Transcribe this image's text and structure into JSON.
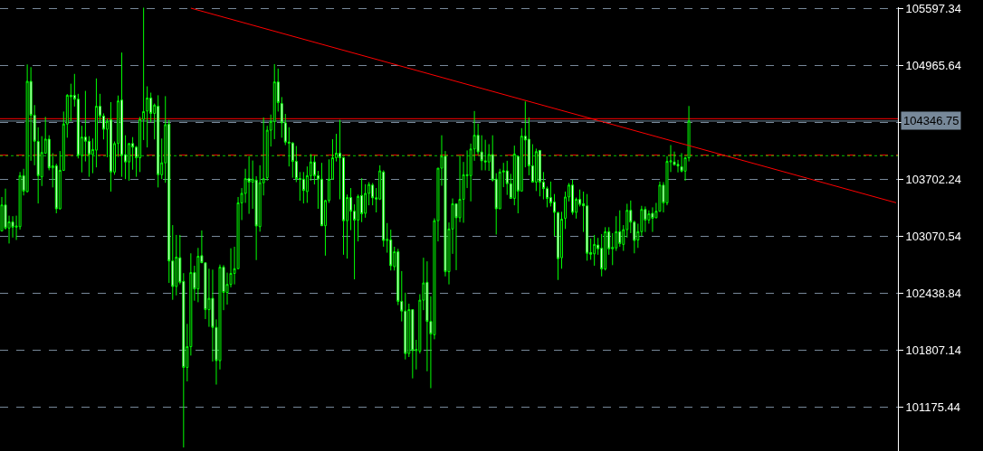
{
  "chart_data": {
    "type": "candlestick",
    "color": "#00ff00",
    "categories": [
      null,
      null,
      null,
      null,
      null,
      null,
      null,
      null,
      null,
      null,
      null,
      null,
      null,
      null,
      null,
      null,
      null,
      null,
      null,
      null,
      null,
      null,
      null,
      null,
      null,
      null,
      null,
      null,
      null,
      null,
      null,
      null,
      null,
      null,
      null,
      null,
      null,
      null,
      null,
      null,
      null,
      null,
      null,
      null,
      null,
      null,
      null,
      null,
      null,
      null,
      null,
      null,
      null,
      null,
      null,
      null,
      null,
      null,
      null,
      null,
      null,
      null,
      null,
      null,
      null,
      null,
      null,
      null,
      null,
      null,
      null,
      null,
      null,
      null,
      null,
      null,
      null,
      null,
      null,
      null,
      null,
      null,
      null,
      null,
      null,
      null,
      null,
      null,
      null,
      null,
      null,
      null,
      null,
      null,
      null,
      null,
      null,
      null,
      null,
      null,
      null,
      null,
      null,
      null,
      null,
      null,
      null,
      null,
      null,
      null,
      null,
      null,
      null,
      null,
      null,
      null,
      null,
      null,
      null,
      null,
      null,
      null,
      null,
      null,
      null,
      null,
      null,
      null,
      null,
      null,
      null,
      null,
      null,
      null,
      null,
      null,
      null,
      null,
      null,
      null,
      null,
      null,
      null,
      null,
      null,
      null,
      null,
      null,
      null,
      null,
      null,
      null,
      null,
      null,
      null,
      null,
      null,
      null,
      null,
      null,
      null,
      null,
      null,
      null,
      null,
      null,
      null,
      null,
      null,
      null,
      null,
      null,
      null,
      null,
      null,
      null,
      null,
      null,
      null,
      null,
      null,
      null,
      null,
      null,
      null,
      null,
      null,
      null,
      null,
      null,
      null,
      null,
      null,
      null,
      null,
      null,
      null,
      null,
      null,
      null,
      null,
      null,
      null,
      null,
      null,
      null,
      null,
      null,
      null,
      null,
      null,
      null,
      null,
      null,
      null,
      null,
      null,
      null,
      null,
      null,
      null,
      null,
      null,
      null,
      null,
      null,
      null,
      null,
      null,
      null,
      null,
      null,
      null,
      null,
      null,
      null,
      null,
      null,
      null,
      null,
      null,
      null,
      null,
      null,
      null,
      null,
      null
    ],
    "ohlc": [
      [
        103126,
        103504,
        103126,
        103416
      ],
      [
        103416,
        103597,
        103142,
        103159
      ],
      [
        103159,
        103297,
        102988,
        103228
      ],
      [
        103228,
        103291,
        103054,
        103169
      ],
      [
        103169,
        103297,
        103027,
        103182
      ],
      [
        103175,
        103781,
        103142,
        103741
      ],
      [
        103741,
        103817,
        103521,
        103570
      ],
      [
        103564,
        104975,
        103554,
        104787
      ],
      [
        104787,
        104945,
        103906,
        104412
      ],
      [
        104412,
        104524,
        103856,
        104123
      ],
      [
        104120,
        104278,
        103432,
        103741
      ],
      [
        103728,
        104179,
        103626,
        103998
      ],
      [
        103991,
        104393,
        103981,
        104146
      ],
      [
        104146,
        104189,
        103800,
        103827
      ],
      [
        103827,
        103991,
        103610,
        103850
      ],
      [
        103850,
        103873,
        103323,
        103373
      ],
      [
        103373,
        104014,
        103366,
        103800
      ],
      [
        103800,
        104452,
        103794,
        104314
      ],
      [
        104314,
        104646,
        104162,
        104633
      ],
      [
        104633,
        104761,
        104343,
        104616
      ],
      [
        104633,
        104870,
        104508,
        104590
      ],
      [
        104590,
        104649,
        103932,
        103965
      ],
      [
        103965,
        104294,
        103777,
        104169
      ],
      [
        104169,
        104682,
        103899,
        104123
      ],
      [
        104123,
        104179,
        103728,
        103975
      ],
      [
        103975,
        104153,
        103768,
        104031
      ],
      [
        104024,
        104820,
        103833,
        104511
      ],
      [
        104511,
        104649,
        104327,
        104403
      ],
      [
        104403,
        104432,
        104143,
        104255
      ],
      [
        104255,
        104376,
        103945,
        104343
      ],
      [
        104360,
        104557,
        103564,
        103781
      ],
      [
        103781,
        104120,
        103751,
        104097
      ],
      [
        104097,
        104630,
        103949,
        104570
      ],
      [
        104580,
        105107,
        103728,
        103965
      ],
      [
        103975,
        104189,
        103702,
        103893
      ],
      [
        103893,
        104103,
        103685,
        104097
      ],
      [
        104097,
        104169,
        103807,
        104057
      ],
      [
        104057,
        104070,
        103728,
        103939
      ],
      [
        103939,
        104393,
        103781,
        104366
      ],
      [
        104366,
        105605,
        104136,
        104452
      ],
      [
        104458,
        104732,
        104054,
        104603
      ],
      [
        104603,
        104662,
        104333,
        104432
      ],
      [
        104432,
        104541,
        104143,
        104524
      ],
      [
        104511,
        104633,
        103610,
        103751
      ],
      [
        103751,
        104153,
        103702,
        103883
      ],
      [
        103883,
        104623,
        103662,
        104307
      ],
      [
        104314,
        104360,
        102550,
        102794
      ],
      [
        102794,
        103192,
        102363,
        102511
      ],
      [
        102511,
        103083,
        102412,
        102837
      ],
      [
        102830,
        103083,
        102534,
        102557
      ],
      [
        102567,
        102659,
        100724,
        101613
      ],
      [
        101613,
        102096,
        101458,
        101843
      ],
      [
        101843,
        102879,
        101744,
        102665
      ],
      [
        102665,
        102741,
        102353,
        102484
      ],
      [
        102484,
        102939,
        102336,
        102846
      ],
      [
        102853,
        103133,
        102774,
        102774
      ],
      [
        102774,
        102774,
        102149,
        102254
      ],
      [
        102254,
        102708,
        102063,
        102379
      ],
      [
        102379,
        102698,
        101678,
        102057
      ],
      [
        102057,
        102146,
        101422,
        101688
      ],
      [
        101688,
        102754,
        101590,
        102725
      ],
      [
        102725,
        102748,
        102248,
        102445
      ],
      [
        102445,
        102665,
        102310,
        102534
      ],
      [
        102534,
        102935,
        102501,
        102656
      ],
      [
        102656,
        102952,
        102534,
        102708
      ],
      [
        102708,
        103504,
        102708,
        103439
      ],
      [
        103439,
        103603,
        103248,
        103544
      ],
      [
        103544,
        103817,
        103439,
        103708
      ],
      [
        103708,
        103958,
        103317,
        103669
      ],
      [
        103669,
        103909,
        103373,
        103702
      ],
      [
        103692,
        103735,
        102804,
        103182
      ],
      [
        103175,
        103856,
        103119,
        103662
      ],
      [
        103662,
        104386,
        103521,
        103708
      ],
      [
        103718,
        104294,
        103685,
        104245
      ],
      [
        104245,
        104419,
        104064,
        104343
      ],
      [
        104343,
        104978,
        104146,
        104781
      ],
      [
        104781,
        104929,
        104452,
        104551
      ],
      [
        104541,
        104613,
        104162,
        104327
      ],
      [
        104327,
        104426,
        104080,
        104113
      ],
      [
        104113,
        104278,
        103843,
        104103
      ],
      [
        104103,
        104113,
        103718,
        103899
      ],
      [
        103899,
        104070,
        103669,
        103708
      ],
      [
        103708,
        103781,
        103462,
        103702
      ],
      [
        103702,
        103781,
        103432,
        103577
      ],
      [
        103564,
        103843,
        103439,
        103741
      ],
      [
        103741,
        103981,
        103685,
        103893
      ],
      [
        103893,
        103965,
        103643,
        103741
      ],
      [
        103741,
        103794,
        103373,
        103702
      ],
      [
        103702,
        103883,
        103185,
        103185
      ],
      [
        103185,
        103471,
        102853,
        103465
      ],
      [
        103465,
        103922,
        103439,
        103702
      ],
      [
        103702,
        104146,
        103702,
        103939
      ],
      [
        103939,
        104205,
        103899,
        103991
      ],
      [
        103991,
        104360,
        103478,
        103939
      ],
      [
        103939,
        103949,
        102863,
        103241
      ],
      [
        103241,
        103531,
        102820,
        103498
      ],
      [
        103498,
        103603,
        103136,
        103346
      ],
      [
        103346,
        103422,
        102590,
        103248
      ],
      [
        103248,
        103531,
        103011,
        103511
      ],
      [
        103521,
        103712,
        103225,
        103317
      ],
      [
        103323,
        103646,
        103274,
        103544
      ],
      [
        103544,
        103669,
        103412,
        103643
      ],
      [
        103636,
        103659,
        103412,
        103495
      ],
      [
        103495,
        103603,
        103333,
        103481
      ],
      [
        103481,
        103856,
        103471,
        103794
      ],
      [
        103781,
        103800,
        102952,
        103021
      ],
      [
        103021,
        103215,
        102886,
        103034
      ],
      [
        103027,
        103142,
        102688,
        102741
      ],
      [
        102731,
        102952,
        102688,
        102896
      ],
      [
        102896,
        102929,
        102304,
        102346
      ],
      [
        102346,
        102682,
        102123,
        102238
      ],
      [
        102238,
        102442,
        101701,
        101767
      ],
      [
        101767,
        102320,
        101728,
        102254
      ],
      [
        102254,
        102254,
        101491,
        101800
      ],
      [
        101800,
        101919,
        101590,
        101810
      ],
      [
        101794,
        102425,
        101767,
        102359
      ],
      [
        102359,
        102830,
        102248,
        102550
      ],
      [
        102557,
        102790,
        101570,
        102123
      ],
      [
        102123,
        102402,
        101382,
        101984
      ],
      [
        101975,
        103268,
        101925,
        103241
      ],
      [
        103241,
        103824,
        103011,
        103824
      ],
      [
        103824,
        104189,
        103629,
        103958
      ],
      [
        103958,
        104014,
        102623,
        102675
      ],
      [
        102675,
        103221,
        102534,
        103149
      ],
      [
        103149,
        103488,
        102873,
        103429
      ],
      [
        103429,
        103429,
        102692,
        103274
      ],
      [
        103274,
        103965,
        103225,
        103478
      ],
      [
        103478,
        103893,
        103218,
        103751
      ],
      [
        103751,
        104021,
        103603,
        103741
      ],
      [
        103741,
        104097,
        103455,
        104037
      ],
      [
        104037,
        104458,
        103906,
        104189
      ],
      [
        104189,
        104317,
        103972,
        104004
      ],
      [
        104004,
        104189,
        103800,
        103906
      ],
      [
        103906,
        104139,
        103800,
        103893
      ],
      [
        103893,
        104090,
        103794,
        103975
      ],
      [
        103975,
        104189,
        103675,
        103692
      ],
      [
        103702,
        103768,
        103087,
        103373
      ],
      [
        103373,
        103817,
        103373,
        103781
      ],
      [
        103781,
        103883,
        103613,
        103794
      ],
      [
        103794,
        103906,
        103527,
        103652
      ],
      [
        103652,
        103761,
        103488,
        103488
      ],
      [
        103488,
        104074,
        103412,
        103981
      ],
      [
        103955,
        103965,
        103323,
        103570
      ],
      [
        103570,
        104268,
        103570,
        104179
      ],
      [
        104179,
        104564,
        103833,
        104136
      ],
      [
        104146,
        104386,
        103745,
        103850
      ],
      [
        103850,
        104090,
        103669,
        103669
      ],
      [
        103669,
        104041,
        103570,
        104008
      ],
      [
        104021,
        104021,
        103511,
        103669
      ],
      [
        103669,
        103781,
        103478,
        103597
      ],
      [
        103597,
        103620,
        103389,
        103488
      ],
      [
        103498,
        103675,
        103399,
        103439
      ],
      [
        103448,
        103537,
        103070,
        103333
      ],
      [
        103330,
        103340,
        102583,
        102820
      ],
      [
        102830,
        103340,
        102708,
        103258
      ],
      [
        103268,
        103564,
        103149,
        103504
      ],
      [
        103504,
        103659,
        103455,
        103636
      ],
      [
        103636,
        103695,
        103307,
        103333
      ],
      [
        103333,
        103498,
        103264,
        103478
      ],
      [
        103478,
        103587,
        103399,
        103422
      ],
      [
        103429,
        103564,
        103116,
        103406
      ],
      [
        103406,
        103537,
        102797,
        102879
      ],
      [
        102886,
        103044,
        102807,
        102869
      ],
      [
        102873,
        103083,
        102741,
        102978
      ],
      [
        102971,
        103050,
        102863,
        102929
      ],
      [
        102935,
        103093,
        102623,
        102705
      ],
      [
        102705,
        103169,
        102688,
        103119
      ],
      [
        103119,
        103169,
        102863,
        102929
      ],
      [
        102929,
        103103,
        102748,
        102945
      ],
      [
        102939,
        103291,
        102906,
        103119
      ],
      [
        103119,
        103356,
        102952,
        102988
      ],
      [
        102978,
        103192,
        102906,
        103142
      ],
      [
        103142,
        103429,
        103054,
        103356
      ],
      [
        103356,
        103465,
        103103,
        103225
      ],
      [
        103225,
        103241,
        102879,
        103021
      ],
      [
        103027,
        103208,
        102939,
        103119
      ],
      [
        103119,
        103406,
        103070,
        103366
      ],
      [
        103366,
        103399,
        103116,
        103248
      ],
      [
        103248,
        103356,
        103208,
        103317
      ],
      [
        103323,
        103389,
        103116,
        103268
      ],
      [
        103274,
        103439,
        103268,
        103346
      ],
      [
        103346,
        103675,
        103340,
        103636
      ],
      [
        103636,
        103669,
        103333,
        103439
      ],
      [
        103439,
        103958,
        103412,
        103899
      ],
      [
        103893,
        104080,
        103781,
        103906
      ],
      [
        103893,
        104008,
        103860,
        103860
      ],
      [
        103866,
        103916,
        103777,
        103847
      ],
      [
        103840,
        103991,
        103777,
        103791
      ],
      [
        103791,
        103949,
        103685,
        103939
      ],
      [
        103939,
        104514,
        103899,
        104346.75
      ],
      null,
      null,
      null,
      null,
      null,
      null,
      null,
      null,
      null,
      null,
      null,
      null,
      null,
      null,
      null,
      null,
      null,
      null,
      null,
      null,
      null,
      null,
      null,
      null,
      null,
      null,
      null,
      null,
      null,
      null,
      null,
      null,
      null,
      null,
      null,
      null,
      null,
      null,
      null,
      null,
      null,
      null,
      null,
      null,
      null,
      null,
      null,
      null,
      null,
      null,
      null,
      null,
      null,
      null,
      null,
      null,
      null
    ],
    "series": [
      {
        "type": "line",
        "color": "#ff0000",
        "values": [
          null,
          null,
          null,
          null,
          null,
          null,
          null,
          null,
          null,
          null,
          null,
          null,
          null,
          null,
          null,
          null,
          null,
          null,
          null,
          null,
          null,
          null,
          null,
          null,
          null,
          null,
          null,
          null,
          null,
          null,
          null,
          null,
          null,
          null,
          null,
          null,
          null,
          null,
          null,
          null,
          null,
          null,
          null,
          null,
          null,
          null,
          null,
          null,
          null,
          null,
          null,
          null,
          105600,
          null,
          null,
          null,
          null,
          null,
          null,
          null,
          null,
          null,
          null,
          null,
          null,
          null,
          null,
          null,
          null,
          null,
          null,
          null,
          null,
          null,
          null,
          null,
          null,
          null,
          null,
          null,
          null,
          null,
          null,
          null,
          null,
          null,
          null,
          null,
          null,
          null,
          null,
          null,
          null,
          null,
          null,
          null,
          null,
          null,
          null,
          null,
          null,
          null,
          null,
          null,
          null,
          null,
          null,
          null,
          null,
          null,
          null,
          null,
          null,
          null,
          null,
          null,
          null,
          null,
          null,
          null,
          null,
          null,
          null,
          null,
          null,
          null,
          null,
          null,
          null,
          null,
          null,
          null,
          null,
          null,
          null,
          null,
          null,
          null,
          null,
          null,
          null,
          null,
          null,
          null,
          null,
          null,
          null,
          null,
          null,
          null,
          null,
          null,
          null,
          null,
          null,
          null,
          null,
          null,
          null,
          null,
          null,
          null,
          null,
          null,
          null,
          null,
          null,
          null,
          null,
          null,
          null,
          null,
          null,
          null,
          null,
          null,
          null,
          null,
          null,
          null,
          null,
          null,
          null,
          null,
          null,
          null,
          null,
          null,
          null,
          null,
          null,
          null,
          null,
          null,
          null,
          null,
          null,
          null,
          null,
          null,
          null,
          null,
          null,
          null,
          null,
          null,
          null,
          null,
          null,
          null,
          null,
          null,
          null,
          null,
          null,
          null,
          null,
          null,
          null,
          null,
          null,
          null,
          null,
          null,
          null,
          null,
          null,
          null,
          null,
          null,
          null,
          null,
          null,
          null,
          null,
          null,
          null,
          null,
          null,
          null,
          null,
          null,
          null,
          null,
          null,
          null,
          103440
        ]
      }
    ],
    "ylim": [
      100685,
      105610
    ],
    "yticks": [
      105597.34,
      104965.64,
      {
        "value": 104333.94,
        "label": null
      },
      103702.24,
      103070.54,
      102438.84,
      101807.14,
      101175.44
    ],
    "ref_lines": [
      {
        "axis": "y",
        "value": 104373,
        "color": "#ff0000",
        "line_style": "solid"
      },
      {
        "axis": "y",
        "value": 104346.75,
        "label": "104346.75",
        "color": "#778899",
        "line_style": "solid"
      },
      {
        "axis": "y",
        "value": 103969,
        "color": "#ff0000",
        "line_style": "dashed"
      },
      {
        "axis": "y",
        "value": 103962,
        "color": "#00c000",
        "line_style": "dotted"
      }
    ],
    "grid": "y"
  }
}
